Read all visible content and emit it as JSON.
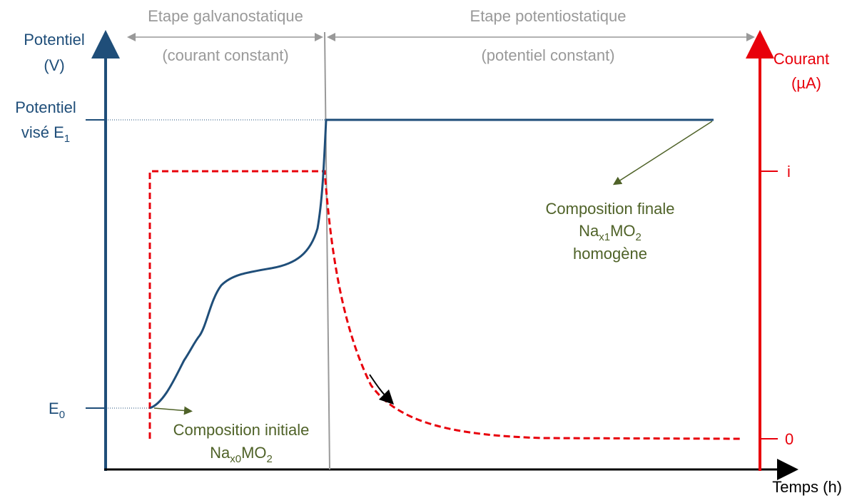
{
  "left_axis_label": [
    "Potentiel",
    "(V)"
  ],
  "right_axis_label": [
    "Courant",
    "(µA)"
  ],
  "x_axis_label": "Temps (h)",
  "stages": [
    {
      "title": "Etape galvanostatique",
      "subtitle": "(courant constant)"
    },
    {
      "title": "Etape potentiostatique",
      "subtitle": "(potentiel constant)"
    }
  ],
  "left_ticks": [
    {
      "line1": "Potentiel",
      "line2": "visé E",
      "sub": "1"
    },
    {
      "line1": "E",
      "sub": "0"
    }
  ],
  "right_ticks": [
    "i",
    "0"
  ],
  "annotations": {
    "final": {
      "line1": "Composition finale",
      "formula": [
        "Na",
        "x1",
        "MO",
        "2"
      ],
      "line3": "homogène"
    },
    "initial": {
      "line1": "Composition initiale",
      "formula": [
        "Na",
        "x0",
        "MO",
        "2"
      ]
    }
  }
}
